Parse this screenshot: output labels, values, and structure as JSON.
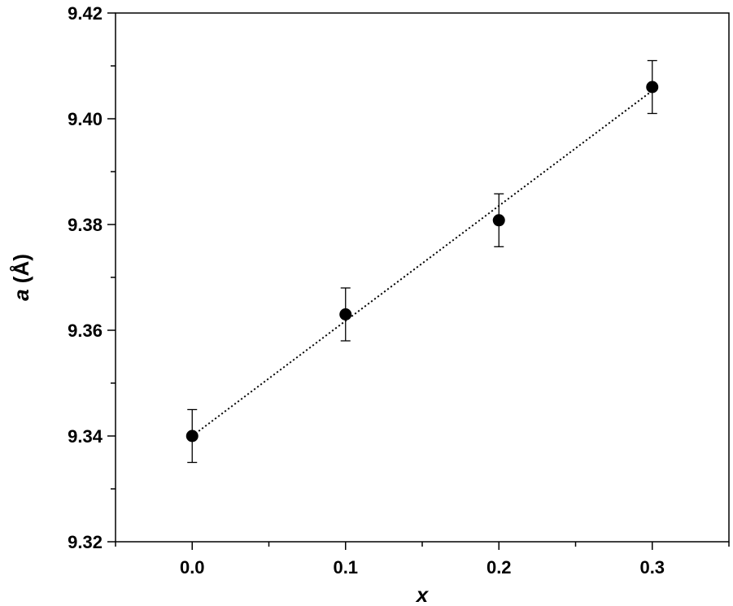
{
  "chart_data": {
    "type": "scatter",
    "title": "",
    "xlabel": "x",
    "ylabel_var": "a",
    "ylabel_unit": " (Å)",
    "xlim": [
      -0.05,
      0.35
    ],
    "ylim": [
      9.32,
      9.42
    ],
    "x_ticks": [
      "0.0",
      "0.1",
      "0.2",
      "0.3"
    ],
    "x_tick_values": [
      0.0,
      0.1,
      0.2,
      0.3
    ],
    "x_minor_ticks": [
      -0.05,
      0.05,
      0.15,
      0.25,
      0.35
    ],
    "y_ticks": [
      "9.32",
      "9.34",
      "9.36",
      "9.38",
      "9.40",
      "9.42"
    ],
    "y_tick_values": [
      9.32,
      9.34,
      9.36,
      9.38,
      9.4,
      9.42
    ],
    "y_minor_ticks": [
      9.33,
      9.35,
      9.37,
      9.39,
      9.41
    ],
    "grid": false,
    "series": [
      {
        "x": [
          0.0,
          0.1,
          0.2,
          0.3
        ],
        "y": [
          9.34,
          9.363,
          9.3808,
          9.406
        ],
        "error": [
          0.005,
          0.005,
          0.005,
          0.005
        ],
        "marker": "circle",
        "color": "#000000"
      }
    ],
    "fit_line": {
      "style": "dotted",
      "x": [
        0.0,
        0.3
      ],
      "y": [
        9.34,
        9.4053
      ],
      "color": "#000000"
    }
  }
}
